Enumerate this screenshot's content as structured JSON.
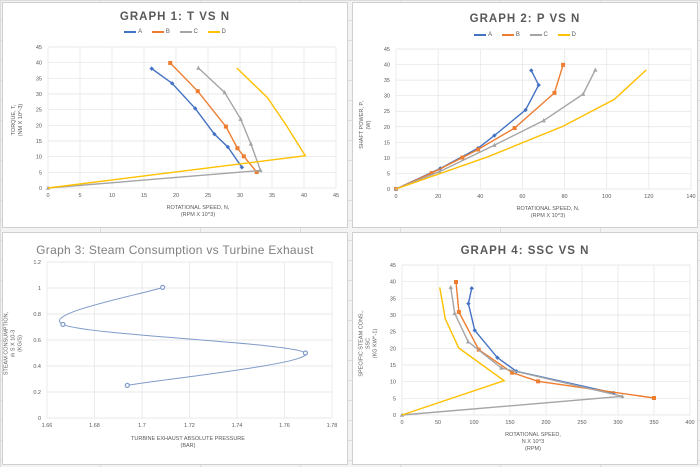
{
  "colors": {
    "A": "#4472C4",
    "B": "#ED7D31",
    "C": "#A5A5A5",
    "D": "#FFC000",
    "graph3": "#7F9BC9"
  },
  "chart_data": [
    {
      "type": "line",
      "title": "GRAPH 1: T VS N",
      "xlabel": [
        "ROTATIONAL SPEED, N,",
        "(RPM X 10^3)"
      ],
      "ylabel": [
        "TORQUE, T,",
        "(NM X 10^-3)"
      ],
      "xlim": [
        0,
        45
      ],
      "ylim": [
        0,
        45
      ],
      "xticks": [
        0,
        5,
        10,
        15,
        20,
        25,
        30,
        35,
        40,
        45
      ],
      "yticks": [
        0,
        5,
        10,
        15,
        20,
        25,
        30,
        35,
        40,
        45
      ],
      "grid": true,
      "legend": "top",
      "series": [
        {
          "name": "A",
          "marker": "diamond",
          "points": [
            [
              16.2,
              38.1
            ],
            [
              19.4,
              33.4
            ],
            [
              23,
              25.4
            ],
            [
              26,
              17.2
            ],
            [
              28.1,
              13.1
            ],
            [
              30.3,
              6.6
            ]
          ]
        },
        {
          "name": "B",
          "marker": "square",
          "points": [
            [
              19.1,
              39.9
            ],
            [
              23.4,
              30.9
            ],
            [
              27.8,
              19.6
            ],
            [
              29.6,
              12.7
            ],
            [
              30.6,
              10.1
            ],
            [
              32.6,
              5.1
            ]
          ]
        },
        {
          "name": "C",
          "marker": "triangle",
          "points": [
            [
              23.5,
              38.3
            ],
            [
              27.6,
              30.5
            ],
            [
              30.1,
              22
            ],
            [
              31.7,
              14.1
            ],
            [
              33.2,
              5.6
            ],
            [
              0,
              0
            ]
          ]
        },
        {
          "name": "D",
          "marker": "none",
          "points": [
            [
              29.5,
              38.3
            ],
            [
              34.3,
              28.8
            ],
            [
              37.2,
              20.1
            ],
            [
              40.2,
              10.3
            ],
            [
              0,
              0
            ]
          ]
        }
      ]
    },
    {
      "type": "line",
      "title": "GRAPH 2: P VS N",
      "xlabel": [
        "ROTATIONAL SPEED, N,",
        "(RPM X 10^3)"
      ],
      "ylabel": [
        "SHAFT POWER, P,",
        "(W)"
      ],
      "xlim": [
        0,
        140
      ],
      "ylim": [
        0,
        45
      ],
      "xticks": [
        0,
        20,
        40,
        60,
        80,
        100,
        120,
        140
      ],
      "yticks": [
        0,
        5,
        10,
        15,
        20,
        25,
        30,
        35,
        40,
        45
      ],
      "grid": true,
      "legend": "top",
      "series": [
        {
          "name": "A",
          "marker": "diamond",
          "points": [
            [
              64.2,
              38.1
            ],
            [
              67.7,
              33.4
            ],
            [
              61.5,
              25.4
            ],
            [
              46.7,
              17.2
            ],
            [
              38.9,
              13.1
            ],
            [
              21,
              6.6
            ],
            [
              0,
              0
            ]
          ]
        },
        {
          "name": "B",
          "marker": "square",
          "points": [
            [
              79.3,
              39.9
            ],
            [
              75.2,
              30.9
            ],
            [
              56.3,
              19.6
            ],
            [
              38.9,
              12.7
            ],
            [
              31.5,
              10.1
            ],
            [
              16.9,
              5.1
            ],
            [
              0,
              0
            ]
          ]
        },
        {
          "name": "C",
          "marker": "triangle",
          "points": [
            [
              94.6,
              38.3
            ],
            [
              88.8,
              30.5
            ],
            [
              70.1,
              22
            ],
            [
              46.7,
              14.1
            ],
            [
              20.7,
              5.6
            ],
            [
              0,
              0
            ]
          ]
        },
        {
          "name": "D",
          "marker": "none",
          "points": [
            [
              118.8,
              38.3
            ],
            [
              103.6,
              28.8
            ],
            [
              79,
              20.1
            ],
            [
              43.4,
              10.3
            ],
            [
              0,
              0
            ]
          ]
        }
      ]
    },
    {
      "type": "scatter",
      "title": "Graph 3: Steam Consumption vs Turbine Exhaust",
      "xlabel": [
        "TURBINE EXHAUST ABSOLUTE PRESSURE",
        "(BAR)"
      ],
      "ylabel": [
        "STEAM CONSUMPTION,",
        "ṁ S X 10-3",
        "(KG/S)"
      ],
      "xlim": [
        1.66,
        1.78
      ],
      "ylim": [
        0,
        1.2
      ],
      "xticks": [
        1.66,
        1.68,
        1.7,
        1.72,
        1.74,
        1.76,
        1.78
      ],
      "yticks": [
        0,
        0.2,
        0.4,
        0.6,
        0.8,
        1,
        1.2
      ],
      "grid": true,
      "smooth": true,
      "series": [
        {
          "marker": "circle",
          "points": [
            [
              1.7087,
              1.005
            ],
            [
              1.6667,
              0.72
            ],
            [
              1.7688,
              0.5
            ],
            [
              1.6938,
              0.251
            ]
          ]
        }
      ]
    },
    {
      "type": "line",
      "title": "GRAPH 4: SSC VS N",
      "xlabel": [
        "ROTATIONAL SPEED,",
        "N X 10^3",
        "(RPM)"
      ],
      "ylabel": [
        "SPECIFIC STEAM CONS.,",
        "SSC",
        "(KG KW^-1)"
      ],
      "xlim": [
        0,
        400
      ],
      "ylim": [
        0,
        45
      ],
      "xticks": [
        0,
        50,
        100,
        150,
        200,
        250,
        300,
        350,
        400
      ],
      "yticks": [
        0,
        5,
        10,
        15,
        20,
        25,
        30,
        35,
        40,
        45
      ],
      "grid": true,
      "series": [
        {
          "name": "A",
          "marker": "diamond",
          "points": [
            [
              96.8,
              38
            ],
            [
              92.2,
              33.4
            ],
            [
              101,
              25.4
            ],
            [
              132.5,
              17.2
            ],
            [
              159,
              13.1
            ],
            [
              294,
              6.6
            ]
          ]
        },
        {
          "name": "B",
          "marker": "square",
          "points": [
            [
              75,
              39.9
            ],
            [
              79,
              30.9
            ],
            [
              106.6,
              19.6
            ],
            [
              153,
              12.7
            ],
            [
              189,
              10.1
            ],
            [
              350,
              5.1
            ]
          ]
        },
        {
          "name": "C",
          "marker": "triangle",
          "points": [
            [
              67.7,
              38.3
            ],
            [
              73.2,
              30.5
            ],
            [
              91.8,
              22
            ],
            [
              138,
              14.1
            ],
            [
              306,
              5.6
            ],
            [
              0,
              0
            ]
          ]
        },
        {
          "name": "D",
          "marker": "none",
          "points": [
            [
              52.4,
              38.3
            ],
            [
              60.2,
              28.8
            ],
            [
              78.8,
              20.1
            ],
            [
              141.8,
              10.3
            ],
            [
              0,
              0
            ]
          ]
        }
      ]
    }
  ]
}
